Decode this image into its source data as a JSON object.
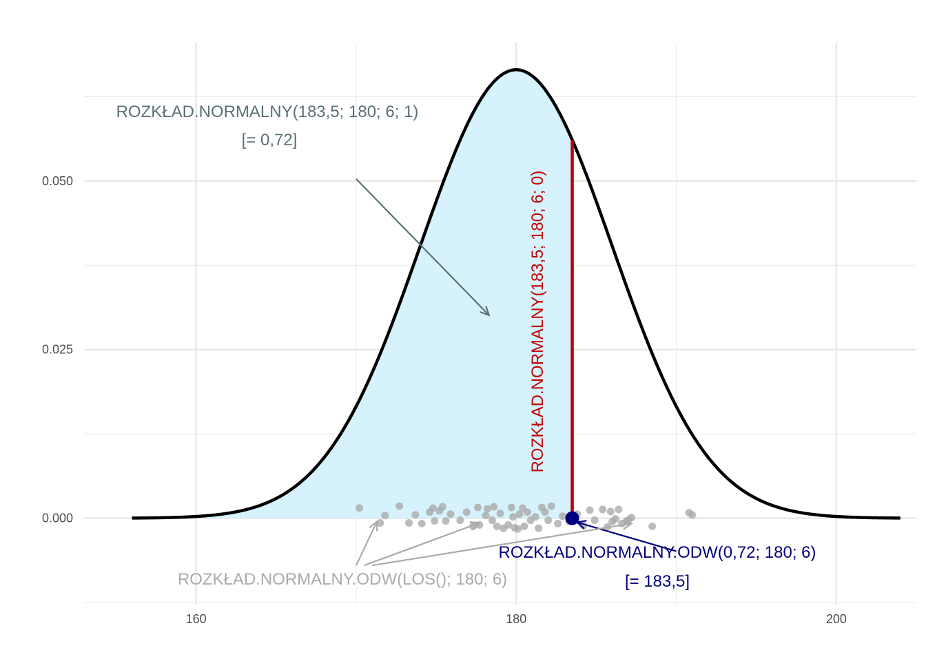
{
  "chart_data": {
    "type": "line",
    "distribution": {
      "mean": 180,
      "sd": 6,
      "x_from": 156,
      "x_to": 204
    },
    "shaded_region": {
      "x_from": 156,
      "x_to": 183.5,
      "color": "#d6f3fd"
    },
    "xlim": [
      153,
      205
    ],
    "ylim": [
      -0.0128,
      0.0705
    ],
    "x_ticks": [
      160,
      180,
      200
    ],
    "x_tick_labels": [
      "160",
      "180",
      "200"
    ],
    "y_ticks": [
      0.0,
      0.025,
      0.05
    ],
    "y_tick_labels": [
      "0.000",
      "0.025",
      "0.050"
    ],
    "x_grid_minor": [
      170,
      190
    ],
    "y_grid_minor": [
      -0.0125,
      0.0125,
      0.0375,
      0.0625
    ],
    "grid": true,
    "vertical_line": {
      "x": 183.5,
      "y_from": 0,
      "y_to": 0.05604,
      "color": "#c00000"
    },
    "point": {
      "x": 183.5,
      "y": 0,
      "color": "#00007f"
    },
    "random_sample": {
      "color": "#aaaaaa",
      "points": [
        [
          170.2,
          0.0015
        ],
        [
          171.5,
          -0.0007
        ],
        [
          171.8,
          0.0004
        ],
        [
          172.7,
          0.0018
        ],
        [
          173.3,
          -0.0007
        ],
        [
          173.7,
          0.0005
        ],
        [
          174.1,
          -0.0008
        ],
        [
          174.6,
          0.0009
        ],
        [
          174.8,
          0.0015
        ],
        [
          174.9,
          -0.0004
        ],
        [
          175.2,
          0.0011
        ],
        [
          175.4,
          0.0017
        ],
        [
          175.6,
          -0.0004
        ],
        [
          175.9,
          0.0006
        ],
        [
          176.5,
          -0.0003
        ],
        [
          176.9,
          0.0009
        ],
        [
          177.3,
          -0.0012
        ],
        [
          177.6,
          0.0016
        ],
        [
          177.7,
          -0.001
        ],
        [
          178.1,
          0.0004
        ],
        [
          178.2,
          0.0014
        ],
        [
          178.5,
          -0.0003
        ],
        [
          178.6,
          0.0017
        ],
        [
          178.8,
          -0.0012
        ],
        [
          179.0,
          0.0007
        ],
        [
          179.2,
          -0.0015
        ],
        [
          179.5,
          -0.001
        ],
        [
          179.7,
          0.0016
        ],
        [
          179.8,
          0.0002
        ],
        [
          179.9,
          -0.0014
        ],
        [
          180.1,
          -0.0016
        ],
        [
          180.2,
          0.0006
        ],
        [
          180.4,
          0.0015
        ],
        [
          180.5,
          -0.0012
        ],
        [
          180.7,
          0.0009
        ],
        [
          180.9,
          -0.0003
        ],
        [
          181.2,
          0.0002
        ],
        [
          181.4,
          -0.0015
        ],
        [
          181.6,
          0.0016
        ],
        [
          181.8,
          0.0009
        ],
        [
          182.0,
          -0.0003
        ],
        [
          182.2,
          0.0018
        ],
        [
          182.6,
          -0.0008
        ],
        [
          182.9,
          0.0003
        ],
        [
          183.3,
          -0.0005
        ],
        [
          183.8,
          0.0006
        ],
        [
          184.2,
          -0.0011
        ],
        [
          184.6,
          0.0012
        ],
        [
          184.9,
          -0.0003
        ],
        [
          185.4,
          0.0013
        ],
        [
          185.7,
          -0.0013
        ],
        [
          185.9,
          0.001
        ],
        [
          186.0,
          -0.0005
        ],
        [
          186.2,
          -0.0001
        ],
        [
          186.4,
          0.0013
        ],
        [
          186.6,
          -0.0008
        ],
        [
          186.9,
          -0.0004
        ],
        [
          187.0,
          -0.0003
        ],
        [
          187.2,
          0.0001
        ],
        [
          188.5,
          -0.0012
        ],
        [
          190.8,
          0.0008
        ],
        [
          191.0,
          0.0005
        ]
      ]
    },
    "annotations": {
      "cdf": {
        "line1": "ROZKŁAD.NORMALNY(183,5; 180; 6; 1)",
        "line2": "[= 0,72]",
        "color": "#5a7078",
        "arrow": {
          "from": [
            170,
            0.0503
          ],
          "to": [
            178.3,
            0.0301
          ]
        }
      },
      "pdf": {
        "text": "ROZKŁAD.NORMALNY(183,5; 180; 6; 0)",
        "color": "#c00000"
      },
      "inverse": {
        "line1": "ROZKŁAD.NORMALNY.ODW(0,72; 180; 6)",
        "line2": "[= 183,5]",
        "color": "#00007f",
        "arrow": {
          "from": [
            190,
            -0.0049
          ],
          "to": [
            183.8,
            -0.0006
          ]
        }
      },
      "random": {
        "text": "ROZKŁAD.NORMALNY.ODW(LOS(); 180; 6)",
        "color": "#aaaaaa",
        "arrows": [
          {
            "from": [
              170,
              -0.007
            ],
            "to": [
              171.3,
              -0.0005
            ]
          },
          {
            "from": [
              170.5,
              -0.007
            ],
            "to": [
              177.7,
              -0.0007
            ]
          },
          {
            "from": [
              171,
              -0.007
            ],
            "to": [
              187.2,
              -0.0008
            ]
          }
        ]
      }
    }
  }
}
